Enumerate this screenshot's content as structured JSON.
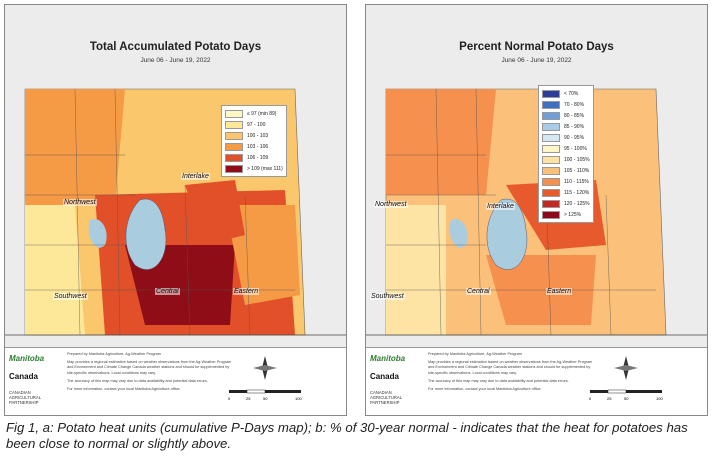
{
  "panel_a": {
    "title": "Total Accumulated Potato Days",
    "subtitle": "June 06 - June 19, 2022",
    "legend": [
      {
        "label": "≤ 97 (min 89)",
        "color": "#fff8c4"
      },
      {
        "label": "97 - 100",
        "color": "#fde89a"
      },
      {
        "label": "100 - 103",
        "color": "#fbc76d"
      },
      {
        "label": "103 - 106",
        "color": "#f59a45"
      },
      {
        "label": "106 - 109",
        "color": "#e2502a"
      },
      {
        "label": "> 109 (max 111)",
        "color": "#8e0d16"
      }
    ],
    "regions": {
      "northwest": "Northwest",
      "interlake": "Interlake",
      "southwest": "Southwest",
      "central": "Central",
      "eastern": "Eastern"
    }
  },
  "panel_b": {
    "title": "Percent Normal Potato Days",
    "subtitle": "June 06 - June 19, 2022",
    "legend": [
      {
        "label": "< 70%",
        "color": "#2c3e9a"
      },
      {
        "label": "70 - 80%",
        "color": "#3f6fbf"
      },
      {
        "label": "80 - 85%",
        "color": "#6f9fd6"
      },
      {
        "label": "85 - 90%",
        "color": "#a9cbe8"
      },
      {
        "label": "90 - 95%",
        "color": "#d5e7f2"
      },
      {
        "label": "95 - 100%",
        "color": "#fff6c8"
      },
      {
        "label": "100 - 105%",
        "color": "#fde3a4"
      },
      {
        "label": "105 - 110%",
        "color": "#fbc07a"
      },
      {
        "label": "110 - 115%",
        "color": "#f5904f"
      },
      {
        "label": "115 - 120%",
        "color": "#e65a2e"
      },
      {
        "label": "120 - 125%",
        "color": "#c52a22"
      },
      {
        "label": "> 125%",
        "color": "#8b0a1e"
      }
    ],
    "regions": {
      "northwest": "Northwest",
      "interlake": "Interlake",
      "southwest": "Southwest",
      "central": "Central",
      "eastern": "Eastern"
    }
  },
  "footer": {
    "manitoba": "Manitoba",
    "canada": "Canada",
    "cap": "CANADIAN AGRICULTURAL PARTNERSHIP",
    "prepared_by": "Prepared by Manitoba Agriculture, Ag-Weather Program",
    "body": "Map provides a regional estimation based on weather observations from the Ag-Weather Program and Environment and Climate Change Canada weather stations and should be supplemented by site-specific observations. Local conditions may vary.",
    "accuracy": "The accuracy of this map may vary due to data availability and potential data errors.",
    "contact": "For more information, contact your local Manitoba Agriculture office.",
    "scale_labels": [
      "0",
      "25",
      "50",
      "100"
    ],
    "scale_unit": "km",
    "compass_n": "N"
  },
  "caption": "Fig 1, a: Potato heat units (cumulative P-Days map); b: % of 30-year normal - indicates that the heat for potatoes has been close to normal or slightly above.",
  "colors": {
    "lake": "#aaccdf",
    "water": "#c9dde8",
    "outside": "#ececec"
  }
}
